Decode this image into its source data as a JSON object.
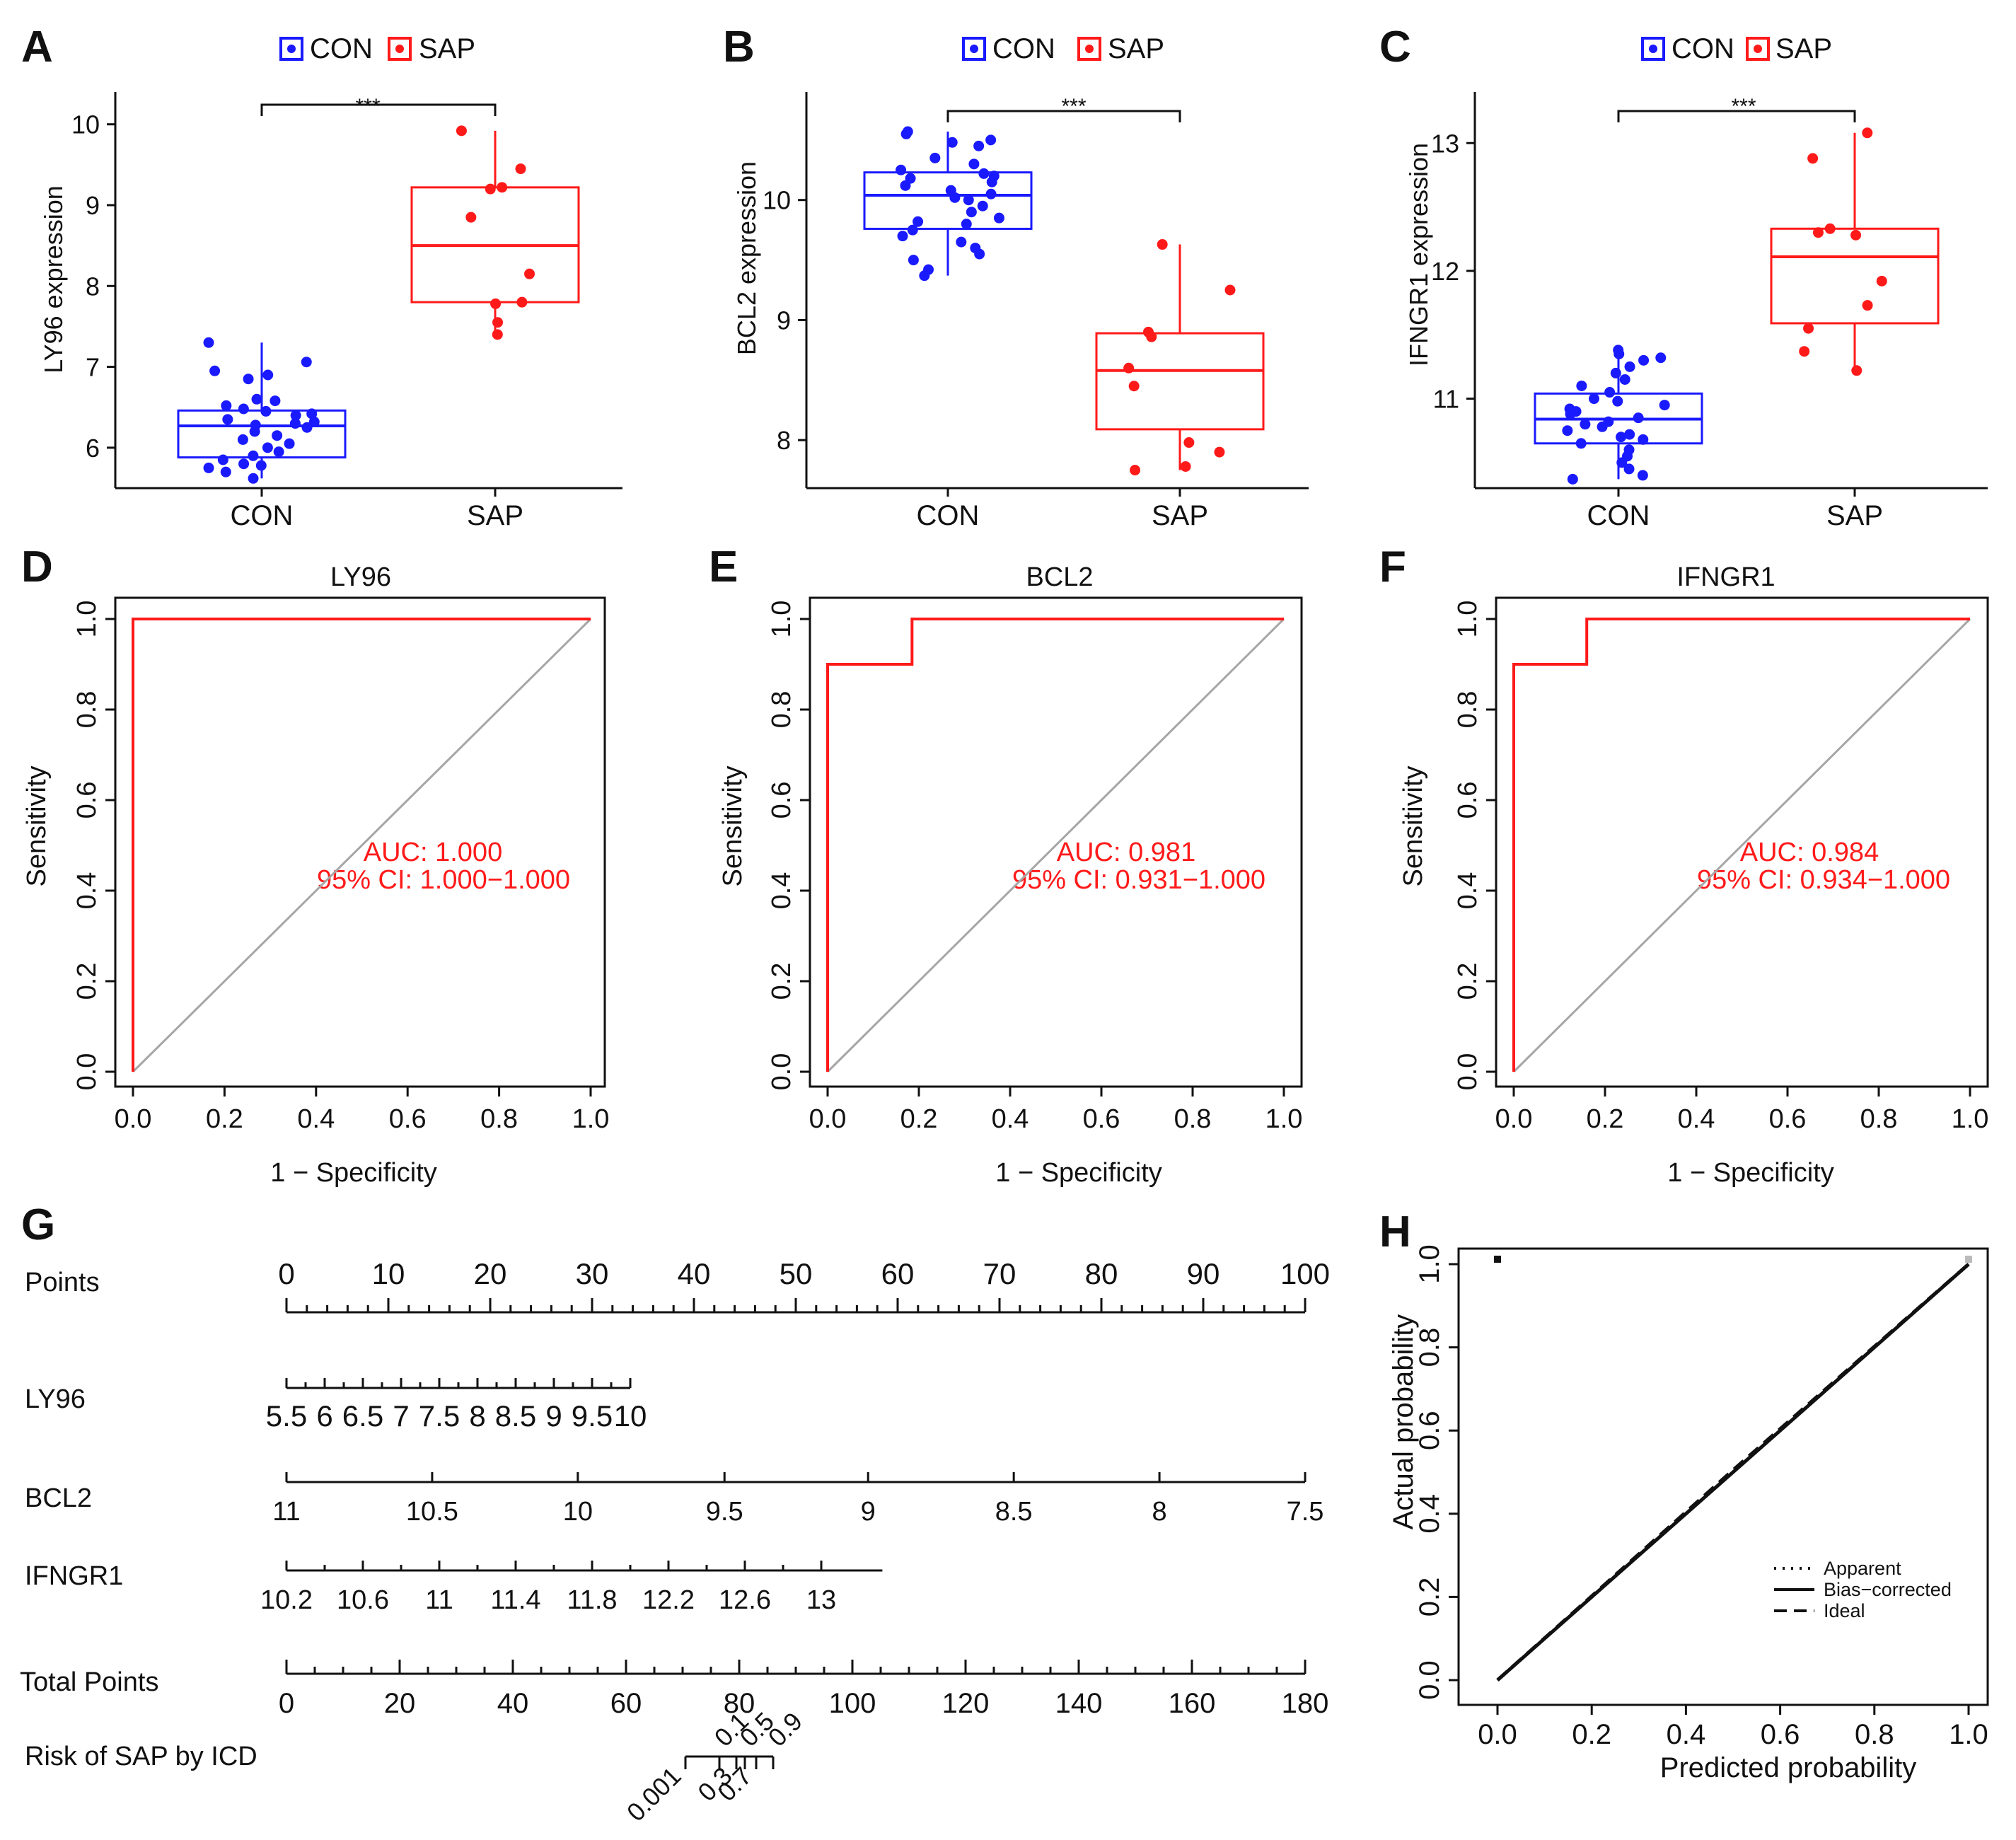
{
  "colors": {
    "con": "#1a1aff",
    "sap": "#ff1a1a",
    "axis": "#111111",
    "diag": "#a6a6a6"
  },
  "chart_data": [
    {
      "panel": "A",
      "type": "box",
      "legend": [
        "CON",
        "SAP"
      ],
      "categories": [
        "CON",
        "SAP"
      ],
      "ylabel": "LY96 expression",
      "yticks": [
        6,
        7,
        8,
        9,
        10
      ],
      "ylim": [
        5.5,
        10.4
      ],
      "significance": "***",
      "boxes": [
        {
          "group": "CON",
          "min": 5.62,
          "q1": 5.88,
          "median": 6.27,
          "q3": 6.46,
          "max": 7.3
        },
        {
          "group": "SAP",
          "min": 7.4,
          "q1": 7.8,
          "median": 8.5,
          "q3": 9.22,
          "max": 9.92
        }
      ],
      "points": {
        "CON": [
          7.3,
          7.06,
          6.95,
          6.9,
          6.85,
          6.6,
          6.58,
          6.52,
          6.48,
          6.45,
          6.42,
          6.4,
          6.35,
          6.32,
          6.3,
          6.28,
          6.25,
          6.2,
          6.15,
          6.1,
          6.05,
          6.0,
          5.95,
          5.9,
          5.85,
          5.8,
          5.78,
          5.75,
          5.7,
          5.62
        ],
        "SAP": [
          9.92,
          9.45,
          9.22,
          9.2,
          8.85,
          8.15,
          7.8,
          7.78,
          7.55,
          7.4
        ]
      }
    },
    {
      "panel": "B",
      "type": "box",
      "legend": [
        "CON",
        "SAP"
      ],
      "categories": [
        "CON",
        "SAP"
      ],
      "ylabel": "BCL2 expression",
      "yticks": [
        8,
        9,
        10
      ],
      "ylim": [
        7.6,
        10.9
      ],
      "significance": "***",
      "boxes": [
        {
          "group": "CON",
          "min": 9.37,
          "q1": 9.76,
          "median": 10.04,
          "q3": 10.23,
          "max": 10.57
        },
        {
          "group": "SAP",
          "min": 7.75,
          "q1": 8.09,
          "median": 8.58,
          "q3": 8.89,
          "max": 9.63
        }
      ],
      "points": {
        "CON": [
          10.57,
          10.55,
          10.5,
          10.48,
          10.45,
          10.35,
          10.3,
          10.25,
          10.22,
          10.2,
          10.18,
          10.15,
          10.12,
          10.08,
          10.05,
          10.02,
          10.0,
          9.95,
          9.9,
          9.85,
          9.82,
          9.8,
          9.75,
          9.7,
          9.65,
          9.6,
          9.55,
          9.5,
          9.42,
          9.37
        ],
        "SAP": [
          9.63,
          9.25,
          8.9,
          8.86,
          8.6,
          8.45,
          7.98,
          7.9,
          7.78,
          7.75
        ]
      }
    },
    {
      "panel": "C",
      "type": "box",
      "legend": [
        "CON",
        "SAP"
      ],
      "categories": [
        "CON",
        "SAP"
      ],
      "ylabel": "IFNGR1 expression",
      "yticks": [
        11,
        12,
        13
      ],
      "ylim": [
        10.3,
        13.4
      ],
      "significance": "***",
      "boxes": [
        {
          "group": "CON",
          "min": 10.37,
          "q1": 10.65,
          "median": 10.84,
          "q3": 11.04,
          "max": 11.38
        },
        {
          "group": "SAP",
          "min": 11.22,
          "q1": 11.59,
          "median": 12.11,
          "q3": 12.33,
          "max": 13.08
        }
      ],
      "points": {
        "CON": [
          11.38,
          11.35,
          11.32,
          11.3,
          11.25,
          11.2,
          11.15,
          11.1,
          11.05,
          11.0,
          10.98,
          10.95,
          10.92,
          10.9,
          10.88,
          10.85,
          10.82,
          10.8,
          10.78,
          10.75,
          10.72,
          10.7,
          10.68,
          10.65,
          10.6,
          10.55,
          10.5,
          10.45,
          10.4,
          10.37
        ],
        "SAP": [
          13.08,
          12.88,
          12.33,
          12.3,
          12.28,
          11.92,
          11.73,
          11.55,
          11.37,
          11.22
        ]
      }
    },
    {
      "panel": "D",
      "type": "roc",
      "title": "LY96",
      "xlabel": "1 − Specificity",
      "ylabel": "Sensitivity",
      "ticks": [
        "0.0",
        "0.2",
        "0.4",
        "0.6",
        "0.8",
        "1.0"
      ],
      "auc_text": "AUC: 1.000",
      "ci_text": "95% CI: 1.000−1.000",
      "curve": [
        [
          0,
          0
        ],
        [
          0,
          1
        ],
        [
          1,
          1
        ]
      ]
    },
    {
      "panel": "E",
      "type": "roc",
      "title": "BCL2",
      "xlabel": "1 − Specificity",
      "ylabel": "Sensitivity",
      "ticks": [
        "0.0",
        "0.2",
        "0.4",
        "0.6",
        "0.8",
        "1.0"
      ],
      "auc_text": "AUC: 0.981",
      "ci_text": "95% CI: 0.931−1.000",
      "curve": [
        [
          0,
          0
        ],
        [
          0,
          0.9
        ],
        [
          0.185,
          0.9
        ],
        [
          0.185,
          1
        ],
        [
          1,
          1
        ]
      ]
    },
    {
      "panel": "F",
      "type": "roc",
      "title": "IFNGR1",
      "xlabel": "1 − Specificity",
      "ylabel": "Sensitivity",
      "ticks": [
        "0.0",
        "0.2",
        "0.4",
        "0.6",
        "0.8",
        "1.0"
      ],
      "auc_text": "AUC: 0.984",
      "ci_text": "95% CI: 0.934−1.000",
      "curve": [
        [
          0,
          0
        ],
        [
          0,
          0.9
        ],
        [
          0.16,
          0.9
        ],
        [
          0.16,
          1
        ],
        [
          1,
          1
        ]
      ]
    },
    {
      "panel": "G",
      "type": "nomogram",
      "rows": [
        {
          "label": "Points",
          "ticks": [
            {
              "v": 0,
              "t": "0"
            },
            {
              "v": 10,
              "t": "10"
            },
            {
              "v": 20,
              "t": "20"
            },
            {
              "v": 30,
              "t": "30"
            },
            {
              "v": 40,
              "t": "40"
            },
            {
              "v": 50,
              "t": "50"
            },
            {
              "v": 60,
              "t": "60"
            },
            {
              "v": 70,
              "t": "70"
            },
            {
              "v": 80,
              "t": "80"
            },
            {
              "v": 90,
              "t": "90"
            },
            {
              "v": 100,
              "t": "100"
            }
          ]
        },
        {
          "label": "LY96",
          "ticks": [
            {
              "v": 0,
              "t": "5.5"
            },
            {
              "v": 3.75,
              "t": "6"
            },
            {
              "v": 7.5,
              "t": "6.5"
            },
            {
              "v": 11.25,
              "t": "7"
            },
            {
              "v": 15,
              "t": "7.5"
            },
            {
              "v": 18.75,
              "t": "8"
            },
            {
              "v": 22.5,
              "t": "8.5"
            },
            {
              "v": 26.25,
              "t": "9"
            },
            {
              "v": 30,
              "t": "9.5"
            },
            {
              "v": 33.75,
              "t": "10"
            }
          ]
        },
        {
          "label": "BCL2",
          "ticks": [
            {
              "v": 0,
              "t": "11"
            },
            {
              "v": 14.3,
              "t": "10.5"
            },
            {
              "v": 28.6,
              "t": "10"
            },
            {
              "v": 43,
              "t": "9.5"
            },
            {
              "v": 57.1,
              "t": "9"
            },
            {
              "v": 71.4,
              "t": "8.5"
            },
            {
              "v": 85.7,
              "t": "8"
            },
            {
              "v": 100,
              "t": "7.5"
            }
          ]
        },
        {
          "label": "IFNGR1",
          "ticks": [
            {
              "v": 0,
              "t": "10.2"
            },
            {
              "v": 7.5,
              "t": "10.6"
            },
            {
              "v": 15,
              "t": "11"
            },
            {
              "v": 22.5,
              "t": "11.4"
            },
            {
              "v": 30,
              "t": "11.8"
            },
            {
              "v": 37.5,
              "t": "12.2"
            },
            {
              "v": 45,
              "t": "12.6"
            },
            {
              "v": 52.5,
              "t": "13"
            }
          ]
        },
        {
          "label": "Total Points",
          "ticks": [
            {
              "v": 0,
              "t": "0"
            },
            {
              "v": 20,
              "t": "20"
            },
            {
              "v": 40,
              "t": "40"
            },
            {
              "v": 60,
              "t": "60"
            },
            {
              "v": 80,
              "t": "80"
            },
            {
              "v": 100,
              "t": "100"
            },
            {
              "v": 120,
              "t": "120"
            },
            {
              "v": 140,
              "t": "140"
            },
            {
              "v": 160,
              "t": "160"
            },
            {
              "v": 180,
              "t": "180"
            }
          ]
        },
        {
          "label": "Risk of SAP by ICD",
          "ticks": [
            {
              "v": 70.5,
              "t": "0.001"
            },
            {
              "v": 76.5,
              "t": "0.1"
            },
            {
              "v": 79.5,
              "t": "0.3"
            },
            {
              "v": 81,
              "t": "0.5"
            },
            {
              "v": 83,
              "t": "0.7"
            },
            {
              "v": 86,
              "t": "0.9"
            }
          ]
        }
      ]
    },
    {
      "panel": "H",
      "type": "calibration",
      "xlabel": "Predicted probability",
      "ylabel": "Actual probability",
      "ticks": [
        "0.0",
        "0.2",
        "0.4",
        "0.6",
        "0.8",
        "1.0"
      ],
      "legend": [
        "Apparent",
        "Bias−corrected",
        "Ideal"
      ],
      "series": [
        {
          "name": "Apparent",
          "x": [
            0,
            0.5,
            1
          ],
          "y": [
            0,
            0.5,
            1
          ]
        },
        {
          "name": "Bias−corrected",
          "x": [
            0,
            0.5,
            1
          ],
          "y": [
            0,
            0.5,
            1
          ]
        },
        {
          "name": "Ideal",
          "x": [
            0,
            0.5,
            1
          ],
          "y": [
            0,
            0.505,
            1
          ]
        }
      ],
      "xlim": [
        0,
        1
      ],
      "ylim": [
        0,
        1
      ]
    }
  ]
}
